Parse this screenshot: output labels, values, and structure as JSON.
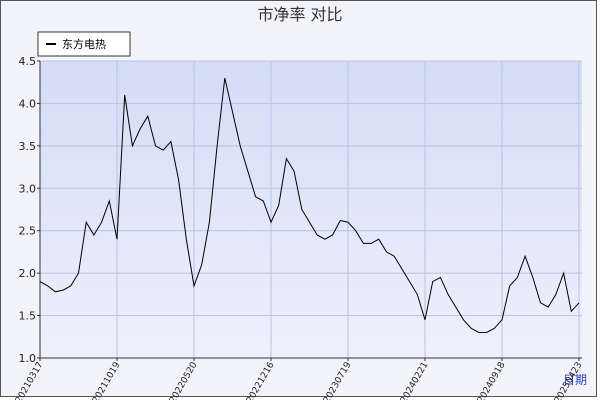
{
  "chart_data": {
    "type": "line",
    "title": "市净率 对比",
    "x_label": "日期",
    "categories": [
      "20210317",
      null,
      null,
      null,
      null,
      null,
      null,
      null,
      null,
      null,
      "20211019",
      null,
      null,
      null,
      null,
      null,
      null,
      null,
      null,
      null,
      "20220520",
      null,
      null,
      null,
      null,
      null,
      null,
      null,
      null,
      null,
      "20221216",
      null,
      null,
      null,
      null,
      null,
      null,
      null,
      null,
      null,
      "20230719",
      null,
      null,
      null,
      null,
      null,
      null,
      null,
      null,
      null,
      "20240221",
      null,
      null,
      null,
      null,
      null,
      null,
      null,
      null,
      null,
      "20240918",
      null,
      null,
      null,
      null,
      null,
      null,
      null,
      null,
      null,
      "20250423"
    ],
    "series": [
      {
        "name": "东方电热",
        "color": "#000000",
        "values": [
          1.9,
          1.85,
          1.78,
          1.8,
          1.85,
          2.0,
          2.6,
          2.45,
          2.6,
          2.85,
          2.4,
          4.1,
          3.5,
          3.7,
          3.85,
          3.5,
          3.45,
          3.55,
          3.1,
          2.4,
          1.85,
          2.1,
          2.6,
          3.5,
          4.3,
          3.9,
          3.5,
          3.2,
          2.9,
          2.85,
          2.6,
          2.8,
          3.35,
          3.2,
          2.75,
          2.6,
          2.45,
          2.4,
          2.45,
          2.62,
          2.6,
          2.5,
          2.35,
          2.35,
          2.4,
          2.25,
          2.2,
          2.05,
          1.9,
          1.75,
          1.45,
          1.9,
          1.95,
          1.75,
          1.6,
          1.45,
          1.35,
          1.3,
          1.3,
          1.35,
          1.45,
          1.85,
          1.95,
          2.2,
          1.95,
          1.65,
          1.6,
          1.75,
          2.0,
          1.55,
          1.65
        ]
      }
    ],
    "ylim": [
      1.0,
      4.5
    ],
    "yticks": [
      {
        "value": 1,
        "label": "1.0"
      },
      1.5,
      {
        "value": 2,
        "label": "2.0"
      },
      2.5,
      {
        "value": 3,
        "label": "3.0"
      },
      3.5,
      {
        "value": 4,
        "label": "4.0"
      },
      4.5
    ],
    "grid": true,
    "legend": "top-left"
  }
}
